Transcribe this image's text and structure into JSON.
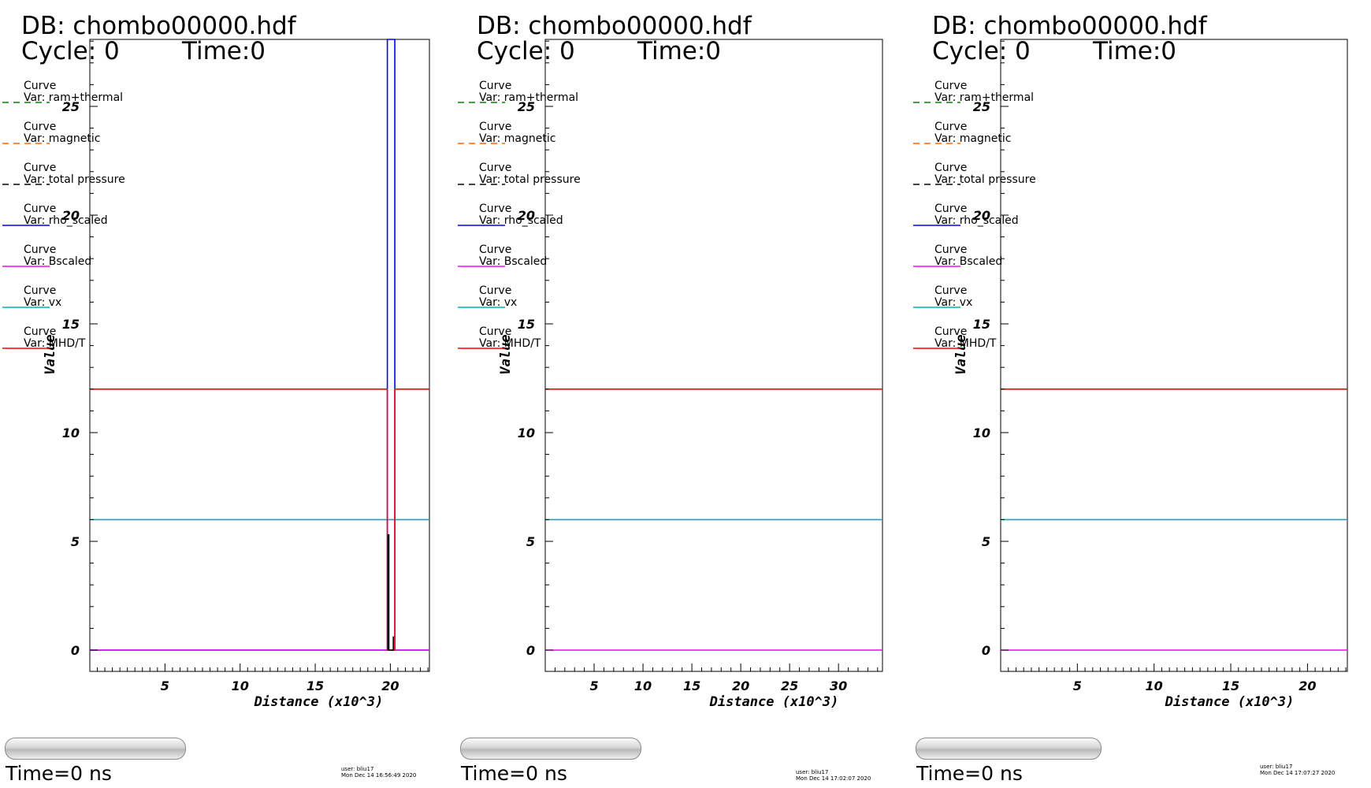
{
  "colors": {
    "ram_thermal": "#008000",
    "magnetic": "#ff6600",
    "total_pressure": "#000000",
    "rho_scaled": "#0000ff",
    "bscaled": "#ff00ff",
    "vx": "#00b0b0",
    "mhd_t": "#ff0000"
  },
  "panels": [
    {
      "db_label": "DB: chombo00000.hdf",
      "cycle_label": "Cycle: 0",
      "time_label": "Time:0",
      "legend": [
        {
          "line1": "Curve",
          "line2": "Var: ram+thermal",
          "style": "dashed",
          "color_key": "ram_thermal"
        },
        {
          "line1": "Curve",
          "line2": "Var: magnetic",
          "style": "dashed",
          "color_key": "magnetic"
        },
        {
          "line1": "Curve",
          "line2": "Var: total pressure",
          "style": "dashed",
          "color_key": "total_pressure"
        },
        {
          "line1": "Curve",
          "line2": "Var: rho_scaled",
          "style": "solid",
          "color_key": "rho_scaled"
        },
        {
          "line1": "Curve",
          "line2": "Var: Bscaled",
          "style": "solid",
          "color_key": "bscaled"
        },
        {
          "line1": "Curve",
          "line2": "Var: vx",
          "style": "solid",
          "color_key": "vx"
        },
        {
          "line1": "Curve",
          "line2": "Var: MHD/T",
          "style": "solid",
          "color_key": "mhd_t"
        }
      ],
      "slider_time": "Time=0 ns",
      "user_stamp": "user: bliu17",
      "date_stamp": "Mon Dec 14 16:56:49 2020"
    },
    {
      "db_label": "DB: chombo00000.hdf",
      "cycle_label": "Cycle: 0",
      "time_label": "Time:0",
      "legend": [
        {
          "line1": "Curve",
          "line2": "Var: ram+thermal",
          "style": "dashed",
          "color_key": "ram_thermal"
        },
        {
          "line1": "Curve",
          "line2": "Var: magnetic",
          "style": "dashed",
          "color_key": "magnetic"
        },
        {
          "line1": "Curve",
          "line2": "Var: total pressure",
          "style": "dashed",
          "color_key": "total_pressure"
        },
        {
          "line1": "Curve",
          "line2": "Var: rho_scaled",
          "style": "solid",
          "color_key": "rho_scaled"
        },
        {
          "line1": "Curve",
          "line2": "Var: Bscaled",
          "style": "solid",
          "color_key": "bscaled"
        },
        {
          "line1": "Curve",
          "line2": "Var: vx",
          "style": "solid",
          "color_key": "vx"
        },
        {
          "line1": "Curve",
          "line2": "Var: MHD/T",
          "style": "solid",
          "color_key": "mhd_t"
        }
      ],
      "slider_time": "Time=0 ns",
      "user_stamp": "user: bliu17",
      "date_stamp": "Mon Dec 14 17:02:07 2020"
    },
    {
      "db_label": "DB: chombo00000.hdf",
      "cycle_label": "Cycle: 0",
      "time_label": "Time:0",
      "legend": [
        {
          "line1": "Curve",
          "line2": "Var: ram+thermal",
          "style": "dashed",
          "color_key": "ram_thermal"
        },
        {
          "line1": "Curve",
          "line2": "Var: magnetic",
          "style": "dashed",
          "color_key": "magnetic"
        },
        {
          "line1": "Curve",
          "line2": "Var: total pressure",
          "style": "dashed",
          "color_key": "total_pressure"
        },
        {
          "line1": "Curve",
          "line2": "Var: rho_scaled",
          "style": "solid",
          "color_key": "rho_scaled"
        },
        {
          "line1": "Curve",
          "line2": "Var: Bscaled",
          "style": "solid",
          "color_key": "bscaled"
        },
        {
          "line1": "Curve",
          "line2": "Var: vx",
          "style": "solid",
          "color_key": "vx"
        },
        {
          "line1": "Curve",
          "line2": "Var: MHD/T",
          "style": "solid",
          "color_key": "mhd_t"
        }
      ],
      "slider_time": "Time=0 ns",
      "user_stamp": "user: bliu17",
      "date_stamp": "Mon Dec 14 17:07:27 2020"
    }
  ],
  "chart_data": [
    {
      "type": "line",
      "xlabel": "Distance (x10^3)",
      "ylabel": "Value",
      "xlim": [
        0,
        22.6
      ],
      "ylim": [
        -1,
        28.5
      ],
      "xticks": [
        5,
        10,
        15,
        20
      ],
      "yticks": [
        0,
        5,
        10,
        15,
        20,
        25
      ],
      "grid": false,
      "legend_position": "top-left",
      "series": [
        {
          "name": "Var: rho_scaled",
          "color_key": "rho_scaled",
          "points": [
            [
              0,
              0
            ],
            [
              19.8,
              0
            ],
            [
              19.8,
              28.5
            ],
            [
              20.3,
              28.5
            ],
            [
              20.3,
              0
            ],
            [
              22.6,
              0
            ]
          ]
        },
        {
          "name": "Var: Bscaled",
          "color_key": "bscaled",
          "points": [
            [
              0,
              0
            ],
            [
              22.6,
              0
            ]
          ]
        },
        {
          "name": "Var: vx",
          "color_key": "vx",
          "points": [
            [
              0,
              6
            ],
            [
              22.6,
              6
            ]
          ]
        },
        {
          "name": "Var: MHD/T",
          "color_key": "mhd_t",
          "points": [
            [
              0,
              12
            ],
            [
              19.8,
              12
            ],
            [
              19.8,
              0
            ],
            [
              20.3,
              0
            ],
            [
              20.3,
              12
            ],
            [
              22.6,
              12
            ]
          ]
        },
        {
          "name": "Var: total pressure",
          "color_key": "total_pressure",
          "points": [
            [
              19.85,
              0
            ],
            [
              19.85,
              5.3
            ],
            [
              19.9,
              5.3
            ],
            [
              19.9,
              0
            ],
            [
              20.2,
              0
            ],
            [
              20.2,
              0.6
            ],
            [
              20.25,
              0.6
            ]
          ]
        }
      ]
    },
    {
      "type": "line",
      "xlabel": "Distance (x10^3)",
      "ylabel": "Value",
      "xlim": [
        0,
        34.5
      ],
      "ylim": [
        -1,
        28.5
      ],
      "xticks": [
        5,
        10,
        15,
        20,
        25,
        30
      ],
      "yticks": [
        0,
        5,
        10,
        15,
        20,
        25
      ],
      "grid": false,
      "legend_position": "top-left",
      "series": [
        {
          "name": "Var: Bscaled",
          "color_key": "bscaled",
          "points": [
            [
              0,
              0
            ],
            [
              34.5,
              0
            ]
          ]
        },
        {
          "name": "Var: vx",
          "color_key": "vx",
          "points": [
            [
              0,
              6
            ],
            [
              34.5,
              6
            ]
          ]
        },
        {
          "name": "Var: MHD/T",
          "color_key": "mhd_t",
          "points": [
            [
              0,
              12
            ],
            [
              34.5,
              12
            ]
          ]
        }
      ]
    },
    {
      "type": "line",
      "xlabel": "Distance (x10^3)",
      "ylabel": "Value",
      "xlim": [
        0,
        22.6
      ],
      "ylim": [
        -1,
        28.5
      ],
      "xticks": [
        5,
        10,
        15,
        20
      ],
      "yticks": [
        0,
        5,
        10,
        15,
        20,
        25
      ],
      "grid": false,
      "legend_position": "top-left",
      "series": [
        {
          "name": "Var: Bscaled",
          "color_key": "bscaled",
          "points": [
            [
              0,
              0
            ],
            [
              22.6,
              0
            ]
          ]
        },
        {
          "name": "Var: vx",
          "color_key": "vx",
          "points": [
            [
              0,
              6
            ],
            [
              22.6,
              6
            ]
          ]
        },
        {
          "name": "Var: MHD/T",
          "color_key": "mhd_t",
          "points": [
            [
              0,
              12
            ],
            [
              22.6,
              12
            ]
          ]
        }
      ]
    }
  ]
}
